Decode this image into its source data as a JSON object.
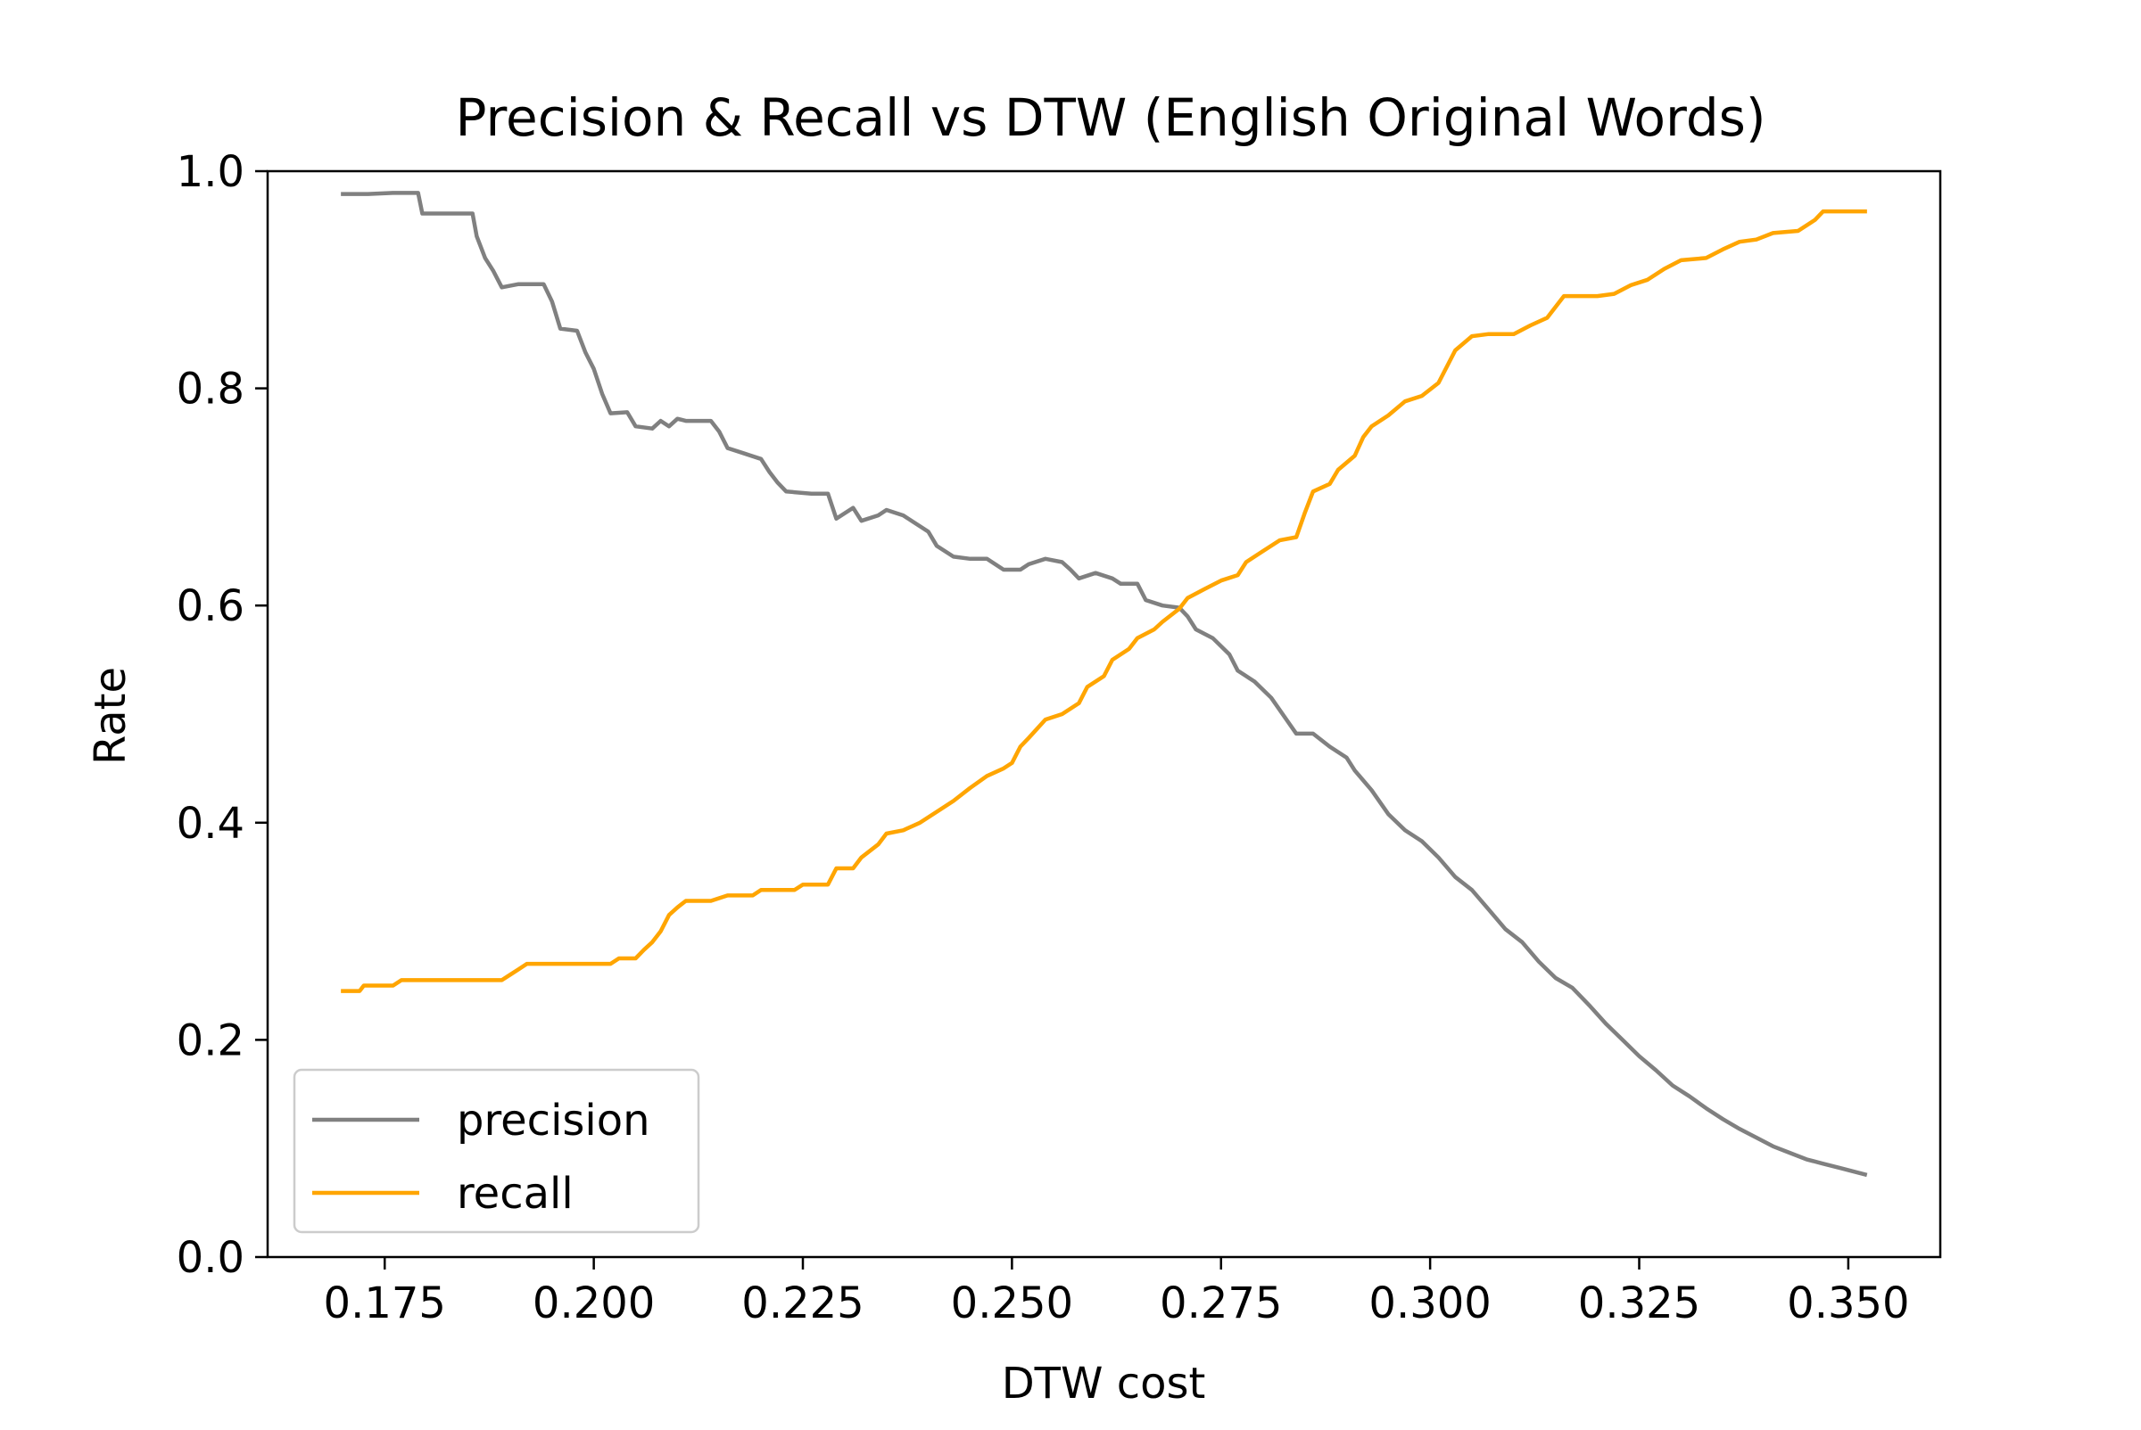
{
  "chart_data": {
    "type": "line",
    "title": "Precision & Recall vs DTW (English Original Words)",
    "xlabel": "DTW cost",
    "ylabel": "Rate",
    "xlim": [
      0.161,
      0.361
    ],
    "ylim": [
      0.0,
      1.0
    ],
    "x_ticks": [
      {
        "value": 0.175,
        "label": "0.175"
      },
      {
        "value": 0.2,
        "label": "0.200"
      },
      {
        "value": 0.225,
        "label": "0.225"
      },
      {
        "value": 0.25,
        "label": "0.250"
      },
      {
        "value": 0.275,
        "label": "0.275"
      },
      {
        "value": 0.3,
        "label": "0.300"
      },
      {
        "value": 0.325,
        "label": "0.325"
      },
      {
        "value": 0.35,
        "label": "0.350"
      }
    ],
    "y_ticks": [
      {
        "value": 0.0,
        "label": "0.0"
      },
      {
        "value": 0.2,
        "label": "0.2"
      },
      {
        "value": 0.4,
        "label": "0.4"
      },
      {
        "value": 0.6,
        "label": "0.6"
      },
      {
        "value": 0.8,
        "label": "0.8"
      },
      {
        "value": 1.0,
        "label": "1.0"
      }
    ],
    "grid": false,
    "legend_position": "lower-left",
    "series": [
      {
        "name": "precision",
        "color": "#808080",
        "points": [
          [
            0.17,
            0.979
          ],
          [
            0.173,
            0.979
          ],
          [
            0.176,
            0.98
          ],
          [
            0.179,
            0.98
          ],
          [
            0.1795,
            0.961
          ],
          [
            0.182,
            0.961
          ],
          [
            0.1855,
            0.961
          ],
          [
            0.186,
            0.94
          ],
          [
            0.187,
            0.92
          ],
          [
            0.188,
            0.908
          ],
          [
            0.189,
            0.893
          ],
          [
            0.191,
            0.896
          ],
          [
            0.194,
            0.896
          ],
          [
            0.195,
            0.88
          ],
          [
            0.196,
            0.855
          ],
          [
            0.198,
            0.853
          ],
          [
            0.199,
            0.833
          ],
          [
            0.2,
            0.818
          ],
          [
            0.201,
            0.795
          ],
          [
            0.202,
            0.777
          ],
          [
            0.204,
            0.778
          ],
          [
            0.205,
            0.765
          ],
          [
            0.207,
            0.763
          ],
          [
            0.208,
            0.77
          ],
          [
            0.209,
            0.765
          ],
          [
            0.21,
            0.772
          ],
          [
            0.211,
            0.77
          ],
          [
            0.214,
            0.77
          ],
          [
            0.215,
            0.76
          ],
          [
            0.216,
            0.745
          ],
          [
            0.218,
            0.74
          ],
          [
            0.22,
            0.735
          ],
          [
            0.221,
            0.723
          ],
          [
            0.222,
            0.713
          ],
          [
            0.223,
            0.705
          ],
          [
            0.226,
            0.703
          ],
          [
            0.228,
            0.703
          ],
          [
            0.229,
            0.68
          ],
          [
            0.231,
            0.69
          ],
          [
            0.232,
            0.678
          ],
          [
            0.234,
            0.683
          ],
          [
            0.235,
            0.688
          ],
          [
            0.237,
            0.683
          ],
          [
            0.238,
            0.678
          ],
          [
            0.24,
            0.668
          ],
          [
            0.241,
            0.655
          ],
          [
            0.243,
            0.645
          ],
          [
            0.245,
            0.643
          ],
          [
            0.247,
            0.643
          ],
          [
            0.249,
            0.633
          ],
          [
            0.251,
            0.633
          ],
          [
            0.252,
            0.638
          ],
          [
            0.254,
            0.643
          ],
          [
            0.256,
            0.64
          ],
          [
            0.257,
            0.633
          ],
          [
            0.258,
            0.625
          ],
          [
            0.26,
            0.63
          ],
          [
            0.262,
            0.625
          ],
          [
            0.263,
            0.62
          ],
          [
            0.265,
            0.62
          ],
          [
            0.266,
            0.605
          ],
          [
            0.268,
            0.6
          ],
          [
            0.27,
            0.598
          ],
          [
            0.271,
            0.59
          ],
          [
            0.272,
            0.578
          ],
          [
            0.274,
            0.57
          ],
          [
            0.276,
            0.555
          ],
          [
            0.277,
            0.54
          ],
          [
            0.279,
            0.53
          ],
          [
            0.281,
            0.515
          ],
          [
            0.283,
            0.493
          ],
          [
            0.284,
            0.482
          ],
          [
            0.286,
            0.482
          ],
          [
            0.288,
            0.47
          ],
          [
            0.29,
            0.46
          ],
          [
            0.291,
            0.448
          ],
          [
            0.293,
            0.43
          ],
          [
            0.295,
            0.408
          ],
          [
            0.297,
            0.393
          ],
          [
            0.299,
            0.383
          ],
          [
            0.301,
            0.368
          ],
          [
            0.303,
            0.35
          ],
          [
            0.305,
            0.338
          ],
          [
            0.307,
            0.32
          ],
          [
            0.309,
            0.302
          ],
          [
            0.311,
            0.29
          ],
          [
            0.313,
            0.272
          ],
          [
            0.315,
            0.257
          ],
          [
            0.317,
            0.248
          ],
          [
            0.319,
            0.232
          ],
          [
            0.321,
            0.215
          ],
          [
            0.323,
            0.2
          ],
          [
            0.325,
            0.185
          ],
          [
            0.327,
            0.172
          ],
          [
            0.329,
            0.158
          ],
          [
            0.331,
            0.148
          ],
          [
            0.333,
            0.137
          ],
          [
            0.335,
            0.127
          ],
          [
            0.337,
            0.118
          ],
          [
            0.339,
            0.11
          ],
          [
            0.341,
            0.102
          ],
          [
            0.343,
            0.096
          ],
          [
            0.345,
            0.09
          ],
          [
            0.347,
            0.086
          ],
          [
            0.349,
            0.082
          ],
          [
            0.352,
            0.076
          ]
        ]
      },
      {
        "name": "recall",
        "color": "#FFA500",
        "points": [
          [
            0.17,
            0.245
          ],
          [
            0.172,
            0.245
          ],
          [
            0.1725,
            0.25
          ],
          [
            0.176,
            0.25
          ],
          [
            0.177,
            0.255
          ],
          [
            0.186,
            0.255
          ],
          [
            0.189,
            0.255
          ],
          [
            0.19,
            0.26
          ],
          [
            0.191,
            0.265
          ],
          [
            0.192,
            0.27
          ],
          [
            0.197,
            0.27
          ],
          [
            0.202,
            0.27
          ],
          [
            0.203,
            0.275
          ],
          [
            0.205,
            0.275
          ],
          [
            0.206,
            0.283
          ],
          [
            0.207,
            0.29
          ],
          [
            0.208,
            0.3
          ],
          [
            0.209,
            0.315
          ],
          [
            0.21,
            0.322
          ],
          [
            0.211,
            0.328
          ],
          [
            0.214,
            0.328
          ],
          [
            0.216,
            0.333
          ],
          [
            0.219,
            0.333
          ],
          [
            0.22,
            0.338
          ],
          [
            0.224,
            0.338
          ],
          [
            0.225,
            0.343
          ],
          [
            0.228,
            0.343
          ],
          [
            0.229,
            0.358
          ],
          [
            0.231,
            0.358
          ],
          [
            0.232,
            0.368
          ],
          [
            0.234,
            0.38
          ],
          [
            0.235,
            0.39
          ],
          [
            0.237,
            0.393
          ],
          [
            0.239,
            0.4
          ],
          [
            0.241,
            0.41
          ],
          [
            0.243,
            0.42
          ],
          [
            0.245,
            0.432
          ],
          [
            0.247,
            0.443
          ],
          [
            0.249,
            0.45
          ],
          [
            0.25,
            0.455
          ],
          [
            0.251,
            0.47
          ],
          [
            0.252,
            0.478
          ],
          [
            0.254,
            0.495
          ],
          [
            0.256,
            0.5
          ],
          [
            0.258,
            0.51
          ],
          [
            0.259,
            0.525
          ],
          [
            0.261,
            0.535
          ],
          [
            0.262,
            0.55
          ],
          [
            0.264,
            0.56
          ],
          [
            0.265,
            0.57
          ],
          [
            0.267,
            0.578
          ],
          [
            0.268,
            0.585
          ],
          [
            0.27,
            0.597
          ],
          [
            0.271,
            0.607
          ],
          [
            0.273,
            0.615
          ],
          [
            0.275,
            0.623
          ],
          [
            0.277,
            0.628
          ],
          [
            0.278,
            0.64
          ],
          [
            0.28,
            0.65
          ],
          [
            0.282,
            0.66
          ],
          [
            0.284,
            0.663
          ],
          [
            0.285,
            0.685
          ],
          [
            0.286,
            0.705
          ],
          [
            0.288,
            0.712
          ],
          [
            0.289,
            0.725
          ],
          [
            0.291,
            0.738
          ],
          [
            0.292,
            0.755
          ],
          [
            0.293,
            0.765
          ],
          [
            0.295,
            0.775
          ],
          [
            0.297,
            0.788
          ],
          [
            0.299,
            0.793
          ],
          [
            0.301,
            0.805
          ],
          [
            0.303,
            0.835
          ],
          [
            0.305,
            0.848
          ],
          [
            0.307,
            0.85
          ],
          [
            0.31,
            0.85
          ],
          [
            0.312,
            0.858
          ],
          [
            0.314,
            0.865
          ],
          [
            0.316,
            0.885
          ],
          [
            0.318,
            0.885
          ],
          [
            0.32,
            0.885
          ],
          [
            0.322,
            0.887
          ],
          [
            0.324,
            0.895
          ],
          [
            0.326,
            0.9
          ],
          [
            0.328,
            0.91
          ],
          [
            0.33,
            0.918
          ],
          [
            0.333,
            0.92
          ],
          [
            0.335,
            0.928
          ],
          [
            0.337,
            0.935
          ],
          [
            0.339,
            0.937
          ],
          [
            0.341,
            0.943
          ],
          [
            0.344,
            0.945
          ],
          [
            0.346,
            0.955
          ],
          [
            0.347,
            0.963
          ],
          [
            0.352,
            0.963
          ]
        ]
      }
    ]
  }
}
